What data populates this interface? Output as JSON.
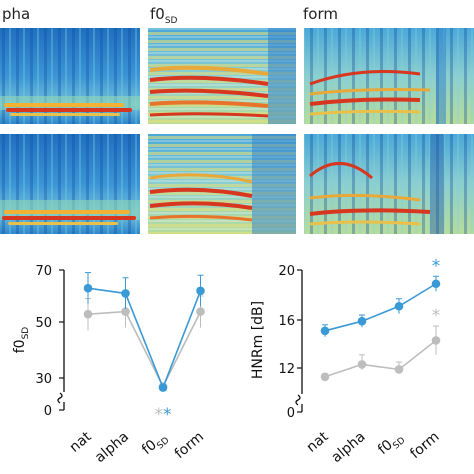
{
  "spectrogram_labels": [
    "pha",
    "f0",
    "form"
  ],
  "spectrogram_subscript": "SD",
  "colors": {
    "blue_series": "#3a9ad6",
    "gray_series": "#bdbdbd",
    "spec_low": "#1a5fb4",
    "spec_mid": "#9fd3c7",
    "spec_high": "#e64a19"
  },
  "chart_data": [
    {
      "type": "line",
      "categories": [
        "nat",
        "alpha",
        "f0",
        "form"
      ],
      "category_subscripts": [
        "",
        "",
        "SD",
        ""
      ],
      "ylabel": "f0",
      "ylabel_subscript": "SD",
      "yticks": [
        "0",
        "30",
        "50",
        "70"
      ],
      "ylim": [
        0,
        70
      ],
      "axis_break": true,
      "series": [
        {
          "color": "#3a9ad6",
          "values": [
            63,
            61,
            21,
            62
          ],
          "errors": [
            6,
            6,
            2,
            6
          ]
        },
        {
          "color": "#bdbdbd",
          "values": [
            53,
            54,
            22,
            54
          ],
          "errors": [
            6,
            6,
            2,
            6
          ]
        }
      ],
      "annotations": [
        {
          "category": "f0",
          "text": "**"
        }
      ]
    },
    {
      "type": "line",
      "categories": [
        "nat",
        "alpha",
        "f0",
        "form"
      ],
      "category_subscripts": [
        "",
        "",
        "SD",
        ""
      ],
      "ylabel": "HNRm [dB]",
      "yticks": [
        "0",
        "12",
        "16",
        "20"
      ],
      "ylim": [
        0,
        20
      ],
      "axis_break": true,
      "series": [
        {
          "color": "#3a9ad6",
          "values": [
            15.1,
            15.9,
            17.1,
            18.9
          ],
          "errors": [
            0.5,
            0.5,
            0.6,
            0.6
          ]
        },
        {
          "color": "#bdbdbd",
          "values": [
            9.6,
            12.3,
            11.6,
            14.3
          ],
          "errors": [
            0.8,
            0.8,
            0.9,
            1.2
          ]
        }
      ],
      "annotations": [
        {
          "category": "form",
          "series": 0,
          "text": "*"
        },
        {
          "category": "form",
          "series": 1,
          "text": "*"
        }
      ]
    }
  ]
}
